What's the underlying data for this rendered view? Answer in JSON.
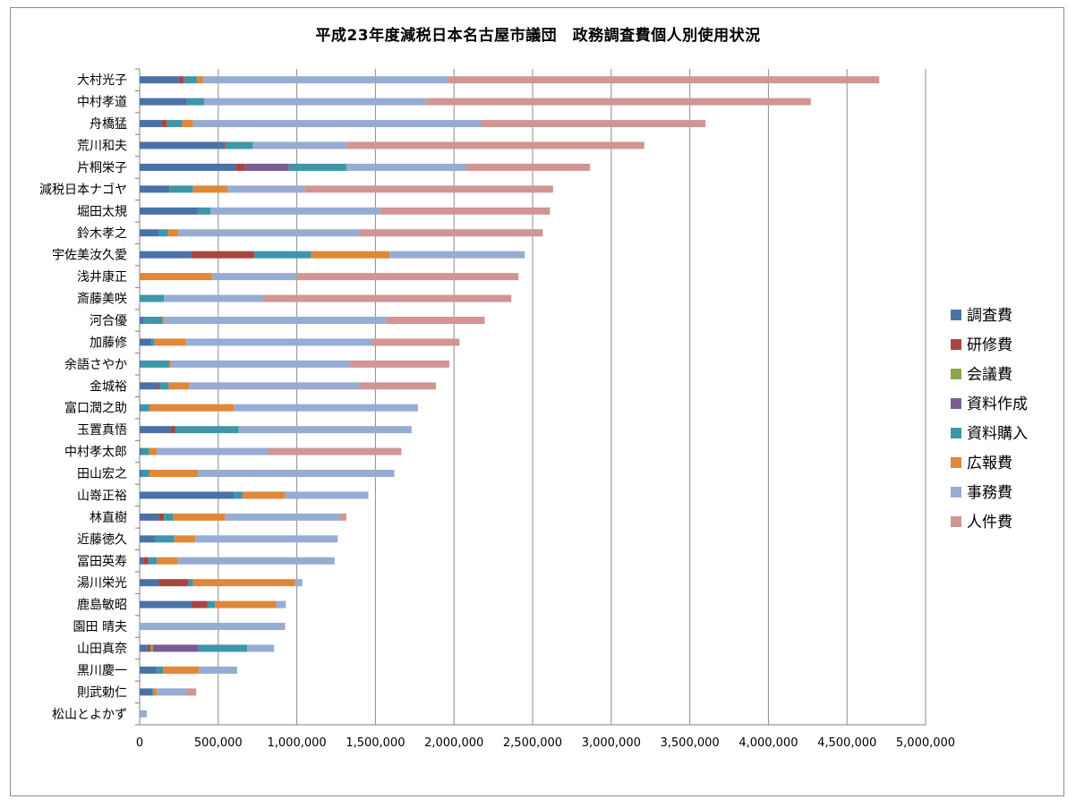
{
  "chart_data": {
    "type": "bar",
    "orientation": "horizontal",
    "stacked": true,
    "title": "平成23年度減税日本名古屋市議団　政務調査費個人別使用状況",
    "xlabel": "",
    "ylabel": "",
    "xlim": [
      0,
      5000000
    ],
    "x_ticks": [
      "0",
      "500,000",
      "1,000,000",
      "1,500,000",
      "2,000,000",
      "2,500,000",
      "3,000,000",
      "3,500,000",
      "4,000,000",
      "4,500,000",
      "5,000,000"
    ],
    "grid": "vertical",
    "legend_position": "right",
    "categories": [
      "大村光子",
      "中村孝道",
      "舟橋猛",
      "荒川和夫",
      "片桐栄子",
      "減税日本ナゴヤ",
      "堀田太規",
      "鈴木孝之",
      "宇佐美汝久愛",
      "浅井康正",
      "斎藤美咲",
      "河合優",
      "加藤修",
      "余語さやか",
      "金城裕",
      "富口潤之助",
      "玉置真悟",
      "中村孝太郎",
      "田山宏之",
      "山嵜正裕",
      "林直樹",
      "近藤徳久",
      "冨田英寿",
      "湯川栄光",
      "鹿島敏昭",
      "園田 晴夫",
      "山田真奈",
      "黒川慶一",
      "則武勅仁",
      "松山とよかず"
    ],
    "series": [
      {
        "name": "調査費",
        "color": "#4a72a8",
        "values": [
          250000,
          300000,
          140000,
          530000,
          610000,
          190000,
          370000,
          120000,
          330000,
          0,
          0,
          25000,
          75000,
          10000,
          120000,
          10000,
          200000,
          15000,
          15000,
          600000,
          120000,
          100000,
          25000,
          120000,
          330000,
          0,
          50000,
          110000,
          80000,
          0
        ]
      },
      {
        "name": "研修費",
        "color": "#a94540",
        "values": [
          30000,
          0,
          35000,
          15000,
          60000,
          0,
          0,
          0,
          400000,
          0,
          0,
          0,
          0,
          0,
          10000,
          0,
          25000,
          0,
          0,
          0,
          35000,
          0,
          30000,
          190000,
          100000,
          0,
          20000,
          0,
          0,
          0
        ]
      },
      {
        "name": "会議費",
        "color": "#8aa54a",
        "values": [
          0,
          0,
          0,
          0,
          0,
          0,
          0,
          0,
          0,
          0,
          0,
          0,
          0,
          0,
          0,
          0,
          0,
          0,
          0,
          0,
          0,
          0,
          0,
          0,
          0,
          0,
          15000,
          0,
          0,
          0
        ]
      },
      {
        "name": "資料作成",
        "color": "#7a5c95",
        "values": [
          0,
          0,
          0,
          0,
          280000,
          0,
          0,
          0,
          0,
          0,
          0,
          0,
          0,
          0,
          0,
          0,
          0,
          0,
          0,
          0,
          0,
          0,
          0,
          0,
          0,
          0,
          290000,
          0,
          0,
          0
        ]
      },
      {
        "name": "資料購入",
        "color": "#3d97a8",
        "values": [
          85000,
          110000,
          95000,
          175000,
          365000,
          150000,
          80000,
          60000,
          360000,
          0,
          155000,
          120000,
          20000,
          180000,
          55000,
          50000,
          405000,
          45000,
          45000,
          55000,
          60000,
          120000,
          55000,
          30000,
          50000,
          0,
          310000,
          40000,
          10000,
          0
        ]
      },
      {
        "name": "広報費",
        "color": "#e0873a",
        "values": [
          40000,
          0,
          70000,
          0,
          0,
          220000,
          0,
          65000,
          500000,
          460000,
          0,
          10000,
          200000,
          10000,
          130000,
          540000,
          0,
          50000,
          310000,
          270000,
          330000,
          135000,
          130000,
          650000,
          390000,
          0,
          0,
          230000,
          20000,
          0
        ]
      },
      {
        "name": "事務費",
        "color": "#96acd3",
        "values": [
          1560000,
          1410000,
          1830000,
          600000,
          760000,
          490000,
          1080000,
          1150000,
          860000,
          540000,
          630000,
          1410000,
          1180000,
          1140000,
          1080000,
          1170000,
          1100000,
          705000,
          1250000,
          530000,
          730000,
          905000,
          1000000,
          45000,
          60000,
          925000,
          170000,
          240000,
          190000,
          45000
        ]
      },
      {
        "name": "人件費",
        "color": "#d19593",
        "values": [
          2740000,
          2450000,
          1430000,
          1890000,
          790000,
          1580000,
          1080000,
          1170000,
          0,
          1410000,
          1580000,
          630000,
          560000,
          630000,
          490000,
          0,
          0,
          850000,
          0,
          0,
          40000,
          0,
          0,
          0,
          0,
          0,
          0,
          0,
          60000,
          0
        ]
      }
    ]
  }
}
